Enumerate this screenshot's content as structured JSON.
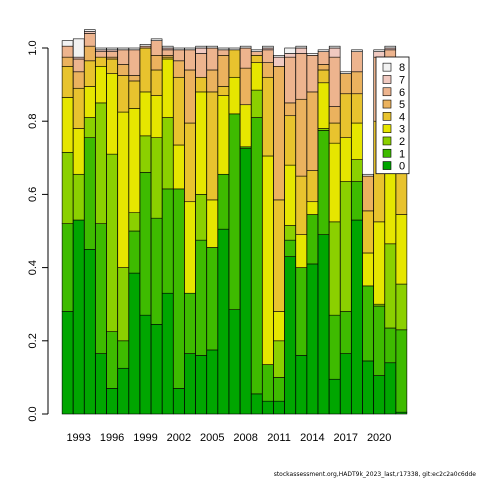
{
  "chart_data": {
    "type": "bar",
    "stacked": true,
    "title": "",
    "xlabel": "",
    "ylabel": "",
    "ylim": [
      0,
      1
    ],
    "yticks": [
      "0.0",
      "0.2",
      "0.4",
      "0.6",
      "0.8",
      "1.0"
    ],
    "x_tick_labels": [
      "1993",
      "1996",
      "1999",
      "2002",
      "2005",
      "2008",
      "2011",
      "2014",
      "2017",
      "2020"
    ],
    "categories": [
      "1992",
      "1993",
      "1994",
      "1995",
      "1996",
      "1997",
      "1998",
      "1999",
      "2000",
      "2001",
      "2002",
      "2003",
      "2004",
      "2005",
      "2006",
      "2007",
      "2008",
      "2009",
      "2010",
      "2011",
      "2012",
      "2013",
      "2014",
      "2015",
      "2016",
      "2017",
      "2018",
      "2019",
      "2020",
      "2021",
      "2022"
    ],
    "series": [
      {
        "name": "0",
        "color": "#00A600",
        "values": [
          0.28,
          0.53,
          0.45,
          0.165,
          0.07,
          0.125,
          0.385,
          0.27,
          0.245,
          0.33,
          0.07,
          0.165,
          0.16,
          0.175,
          0.505,
          0.285,
          0.725,
          0.055,
          0.035,
          0.035,
          0.43,
          0.16,
          0.41,
          0.49,
          0.095,
          0.165,
          0.53,
          0.145,
          0.105,
          0.14,
          0.005
        ]
      },
      {
        "name": "1",
        "color": "#3EBB00",
        "values": [
          0.24,
          0.0,
          0.305,
          0.355,
          0.155,
          0.075,
          0.115,
          0.39,
          0.29,
          0.285,
          0.545,
          0.165,
          0.315,
          0.28,
          0.15,
          0.535,
          0.005,
          0.755,
          0.1,
          0.065,
          0.045,
          0.24,
          0.135,
          0.285,
          0.175,
          0.115,
          0.105,
          0.205,
          0.19,
          0.095,
          0.225
        ]
      },
      {
        "name": "2",
        "color": "#8BD000",
        "values": [
          0.195,
          0.125,
          0.055,
          0.33,
          0.485,
          0.2,
          0.05,
          0.1,
          0.22,
          0.195,
          0.0,
          0.0,
          0.125,
          0.0,
          0.0,
          0.0,
          0.0,
          0.075,
          0.0,
          0.1,
          0.04,
          0.0,
          0.0,
          0.005,
          0.255,
          0.355,
          0.06,
          0.0,
          0.005,
          0.23,
          0.125
        ]
      },
      {
        "name": "3",
        "color": "#E6E600",
        "values": [
          0.15,
          0.125,
          0.085,
          0.1,
          0.22,
          0.425,
          0.285,
          0.12,
          0.115,
          0.16,
          0.12,
          0.25,
          0.28,
          0.13,
          0.215,
          0.1,
          0.115,
          0.075,
          0.57,
          0.08,
          0.165,
          0.09,
          0.035,
          0.125,
          0.215,
          0.12,
          0.1,
          0.09,
          0.225,
          0.25,
          0.19
        ]
      },
      {
        "name": "4",
        "color": "#E8C32E",
        "values": [
          0.085,
          0.11,
          0.07,
          0.025,
          0.04,
          0.1,
          0.075,
          0.12,
          0.07,
          0.005,
          0.185,
          0.215,
          0.04,
          0.295,
          0.025,
          0.075,
          0.0,
          0.02,
          0.215,
          0.305,
          0.135,
          0.16,
          0.085,
          0.035,
          0.055,
          0.12,
          0.08,
          0.115,
          0.275,
          0.04,
          0.255
        ]
      },
      {
        "name": "5",
        "color": "#EBB25E",
        "values": [
          0.025,
          0.045,
          0.04,
          0.0,
          0.005,
          0.03,
          0.015,
          0.0,
          0.04,
          0.005,
          0.045,
          0.145,
          0.0,
          0.06,
          0.085,
          0.0,
          0.1,
          0.0,
          0.04,
          0.365,
          0.035,
          0.21,
          0.215,
          0.015,
          0.045,
          0.055,
          0.06,
          0.095,
          0.0,
          0.135,
          0.0
        ]
      },
      {
        "name": "6",
        "color": "#EDB48E",
        "values": [
          0.03,
          0.035,
          0.035,
          0.015,
          0.015,
          0.04,
          0.07,
          0.005,
          0.04,
          0.015,
          0.03,
          0.055,
          0.065,
          0.06,
          0.015,
          0.0,
          0.055,
          0.01,
          0.035,
          0.0,
          0.125,
          0.125,
          0.1,
          0.035,
          0.135,
          0.0,
          0.055,
          0.0,
          0.175,
          0.105,
          0.0
        ]
      },
      {
        "name": "7",
        "color": "#F0C9C0",
        "values": [
          0.0,
          0.005,
          0.005,
          0.005,
          0.005,
          0.0,
          0.0,
          0.0,
          0.0,
          0.005,
          0.0,
          0.0,
          0.015,
          0.0,
          0.0,
          0.0,
          0.0,
          0.0,
          0.005,
          0.025,
          0.01,
          0.015,
          0.0,
          0.0,
          0.025,
          0.0,
          0.0,
          0.0,
          0.015,
          0.005,
          0.0
        ]
      },
      {
        "name": "8",
        "color": "#F2F2F2",
        "values": [
          0.015,
          0.05,
          0.005,
          0.005,
          0.005,
          0.005,
          0.005,
          0.005,
          0.005,
          0.005,
          0.005,
          0.005,
          0.005,
          0.005,
          0.005,
          0.005,
          0.005,
          0.005,
          0.005,
          0.005,
          0.015,
          0.005,
          0.005,
          0.005,
          0.005,
          0.005,
          0.005,
          0.005,
          0.005,
          0.005,
          0.005
        ]
      }
    ],
    "legend": {
      "placement": "top-right"
    },
    "grid": false
  },
  "caption": "stockassessment.org,HADT9k_2023_last,r17338, git:ec2c2a0c6dde"
}
